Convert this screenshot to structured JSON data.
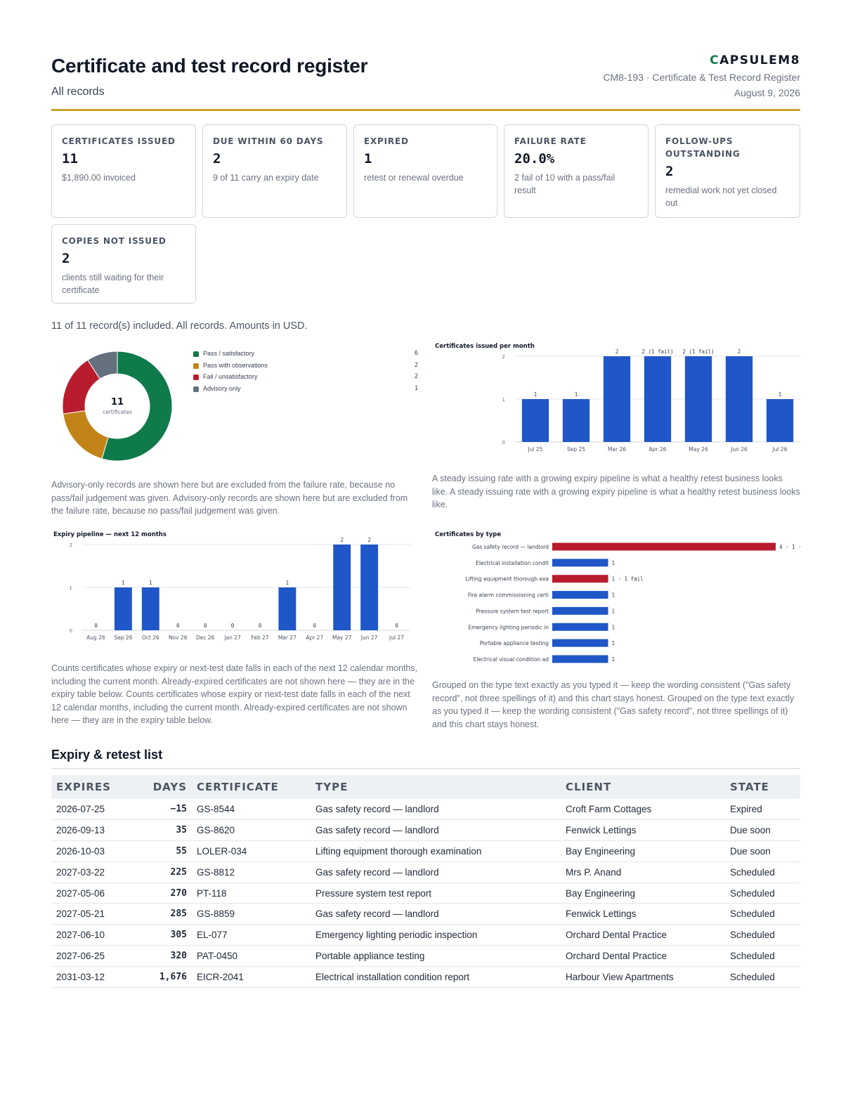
{
  "header": {
    "title": "Certificate and test record register",
    "subtitle": "All records",
    "brand_first": "C",
    "brand_rest": "APSULEM8",
    "doc_ref": "CM8-193 · Certificate & Test Record Register",
    "date": "August 9, 2026"
  },
  "kpis": [
    {
      "label": "CERTIFICATES ISSUED",
      "value": "11",
      "note": "$1,890.00 invoiced"
    },
    {
      "label": "DUE WITHIN 60 DAYS",
      "value": "2",
      "note": "9 of 11 carry an expiry date"
    },
    {
      "label": "EXPIRED",
      "value": "1",
      "note": "retest or renewal overdue"
    },
    {
      "label": "FAILURE RATE",
      "value": "20.0%",
      "note": "2 fail of 10 with a pass/fail result"
    },
    {
      "label": "FOLLOW-UPS OUTSTANDING",
      "value": "2",
      "note": "remedial work not yet closed out"
    },
    {
      "label": "COPIES NOT ISSUED",
      "value": "2",
      "note": "clients still waiting for their certificate"
    }
  ],
  "included_text": "11 of 11 record(s) included. All records. Amounts in USD.",
  "captions": {
    "donut": "Advisory-only records are shown here but are excluded from the failure rate, because no pass/fail judgement was given. Advisory-only records are shown here but are excluded from the failure rate, because no pass/fail judgement was given.",
    "monthly": "A steady issuing rate with a growing expiry pipeline is what a healthy retest business looks like. A steady issuing rate with a growing expiry pipeline is what a healthy retest business looks like.",
    "pipeline": "Counts certificates whose expiry or next-test date falls in each of the next 12 calendar months, including the current month. Already-expired certificates are not shown here — they are in the expiry table below. Counts certificates whose expiry or next-test date falls in each of the next 12 calendar months, including the current month. Already-expired certificates are not shown here — they are in the expiry table below.",
    "bytype": "Grouped on the type text exactly as you typed it — keep the wording consistent (\"Gas safety record\", not three spellings of it) and this chart stays honest. Grouped on the type text exactly as you typed it — keep the wording consistent (\"Gas safety record\", not three spellings of it) and this chart stays honest."
  },
  "chart_data": [
    {
      "type": "pie",
      "variant": "donut",
      "center_value": "11",
      "center_label": "certificates",
      "categories": [
        "Pass / satisfactory",
        "Pass with observations",
        "Fail / unsatisfactory",
        "Advisory only"
      ],
      "values": [
        6,
        2,
        2,
        1
      ],
      "colors": [
        "#0f7a4a",
        "#c28418",
        "#b91c2c",
        "#64707d"
      ],
      "legend": "right"
    },
    {
      "type": "bar",
      "title": "Certificates issued per month",
      "categories": [
        "Jul 25",
        "Sep 25",
        "Mar 26",
        "Apr 26",
        "May 26",
        "Jun 26",
        "Jul 26"
      ],
      "values": [
        1,
        1,
        2,
        2,
        2,
        2,
        1
      ],
      "labels": [
        "1",
        "1",
        "2",
        "2 (1 fail)",
        "2 (1 fail)",
        "2",
        "1"
      ],
      "ylim": [
        0,
        2
      ],
      "yticks": [
        0,
        1,
        2
      ],
      "color": "#1f56c8",
      "grid": true
    },
    {
      "type": "bar",
      "title": "Expiry pipeline — next 12 months",
      "categories": [
        "Aug 26",
        "Sep 26",
        "Oct 26",
        "Nov 26",
        "Dec 26",
        "Jan 27",
        "Feb 27",
        "Mar 27",
        "Apr 27",
        "May 27",
        "Jun 27",
        "Jul 27"
      ],
      "values": [
        0,
        1,
        1,
        0,
        0,
        0,
        0,
        1,
        0,
        2,
        2,
        0
      ],
      "ylim": [
        0,
        2
      ],
      "yticks": [
        0,
        1,
        2
      ],
      "color": "#1f56c8",
      "grid": true
    },
    {
      "type": "bar",
      "orientation": "horizontal",
      "title": "Certificates by type",
      "categories": [
        "Gas safety record — landlord",
        "Electrical installation condit",
        "Lifting equipment thorough exa",
        "Fire alarm commissioning certi",
        "Pressure system test report",
        "Emergency lighting periodic in",
        "Portable appliance testing",
        "Electrical visual condition ad"
      ],
      "values": [
        4,
        1,
        1,
        1,
        1,
        1,
        1,
        1
      ],
      "labels": [
        "4 · 1 ·",
        "1",
        "1 · 1 fail",
        "1",
        "1",
        "1",
        "1",
        "1"
      ],
      "colors": [
        "#b91c2c",
        "#1f56c8",
        "#b91c2c",
        "#1f56c8",
        "#1f56c8",
        "#1f56c8",
        "#1f56c8",
        "#1f56c8"
      ]
    }
  ],
  "table": {
    "title": "Expiry & retest list",
    "columns": [
      "EXPIRES",
      "DAYS",
      "CERTIFICATE",
      "TYPE",
      "CLIENT",
      "STATE"
    ],
    "rows": [
      [
        "2026-07-25",
        "−15",
        "GS-8544",
        "Gas safety record — landlord",
        "Croft Farm Cottages",
        "Expired"
      ],
      [
        "2026-09-13",
        "35",
        "GS-8620",
        "Gas safety record — landlord",
        "Fenwick Lettings",
        "Due soon"
      ],
      [
        "2026-10-03",
        "55",
        "LOLER-034",
        "Lifting equipment thorough examination",
        "Bay Engineering",
        "Due soon"
      ],
      [
        "2027-03-22",
        "225",
        "GS-8812",
        "Gas safety record — landlord",
        "Mrs P. Anand",
        "Scheduled"
      ],
      [
        "2027-05-06",
        "270",
        "PT-118",
        "Pressure system test report",
        "Bay Engineering",
        "Scheduled"
      ],
      [
        "2027-05-21",
        "285",
        "GS-8859",
        "Gas safety record — landlord",
        "Fenwick Lettings",
        "Scheduled"
      ],
      [
        "2027-06-10",
        "305",
        "EL-077",
        "Emergency lighting periodic inspection",
        "Orchard Dental Practice",
        "Scheduled"
      ],
      [
        "2027-06-25",
        "320",
        "PAT-0450",
        "Portable appliance testing",
        "Orchard Dental Practice",
        "Scheduled"
      ],
      [
        "2031-03-12",
        "1,676",
        "EICR-2041",
        "Electrical installation condition report",
        "Harbour View Apartments",
        "Scheduled"
      ]
    ]
  }
}
